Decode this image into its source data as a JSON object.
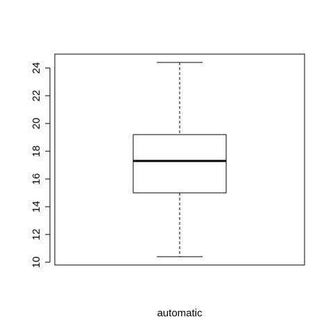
{
  "chart_data": {
    "type": "box",
    "xlabel": "automatic",
    "ylabel": "",
    "title": "",
    "ylim": [
      9.8,
      25.0
    ],
    "yticks": [
      10,
      12,
      14,
      16,
      18,
      20,
      22,
      24
    ],
    "boxes": [
      {
        "min": 10.4,
        "q1": 15.0,
        "median": 17.3,
        "q3": 19.2,
        "max": 24.4
      }
    ],
    "grid": false
  }
}
